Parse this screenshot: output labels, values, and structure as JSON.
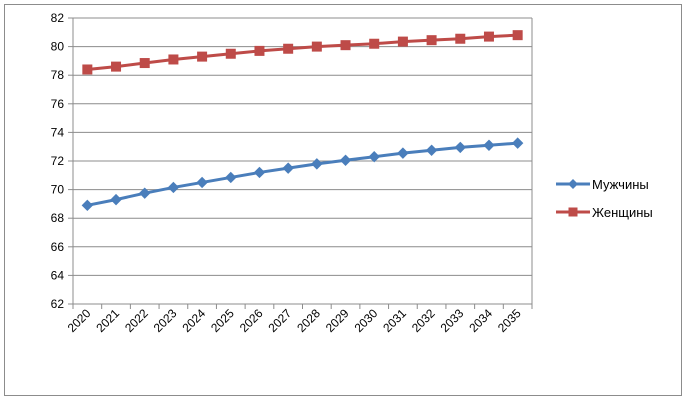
{
  "chart_data": {
    "type": "line",
    "title": "",
    "xlabel": "",
    "ylabel": "",
    "categories": [
      "2020",
      "2021",
      "2022",
      "2023",
      "2024",
      "2025",
      "2026",
      "2027",
      "2028",
      "2029",
      "2030",
      "2031",
      "2032",
      "2033",
      "2034",
      "2035"
    ],
    "ylim": [
      62,
      82
    ],
    "yticks": [
      62,
      64,
      66,
      68,
      70,
      72,
      74,
      76,
      78,
      80,
      82
    ],
    "grid": true,
    "legend_position": "right",
    "series": [
      {
        "name": "Мужчины",
        "color": "#4a7ebb",
        "marker": "diamond",
        "values": [
          68.9,
          69.3,
          69.75,
          70.15,
          70.5,
          70.85,
          71.2,
          71.5,
          71.8,
          72.05,
          72.3,
          72.55,
          72.75,
          72.95,
          73.1,
          73.25
        ]
      },
      {
        "name": "Женщины",
        "color": "#be4b48",
        "marker": "square",
        "values": [
          78.4,
          78.6,
          78.85,
          79.1,
          79.3,
          79.5,
          79.7,
          79.85,
          80.0,
          80.1,
          80.2,
          80.35,
          80.45,
          80.55,
          80.7,
          80.8
        ]
      }
    ]
  }
}
